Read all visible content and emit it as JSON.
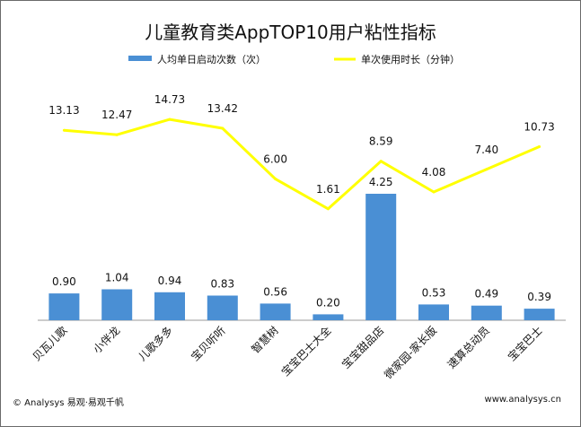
{
  "chart_data": {
    "type": "bar+line",
    "title": "儿童教育类AppTOP10用户粘性指标",
    "categories": [
      "贝瓦儿歌",
      "小伴龙",
      "儿歌多多",
      "宝贝听听",
      "智慧树",
      "宝宝巴士大全",
      "宝宝甜品店",
      "微家园-家长版",
      "速算总动员",
      "宝宝巴士"
    ],
    "series": [
      {
        "name": "人均单日启动次数（次）",
        "type": "bar",
        "color": "#4a8fd4",
        "values": [
          0.9,
          1.04,
          0.94,
          0.83,
          0.56,
          0.2,
          4.25,
          0.53,
          0.49,
          0.39
        ],
        "labels": [
          "0.90",
          "1.04",
          "0.94",
          "0.83",
          "0.56",
          "0.20",
          "4.25",
          "0.53",
          "0.49",
          "0.39"
        ]
      },
      {
        "name": "单次使用时长（分钟）",
        "type": "line",
        "color": "#ffff00",
        "values": [
          13.13,
          12.47,
          14.73,
          13.42,
          6.0,
          1.61,
          8.59,
          4.08,
          7.4,
          10.73
        ],
        "labels": [
          "13.13",
          "12.47",
          "14.73",
          "13.42",
          "6.00",
          "1.61",
          "8.59",
          "4.08",
          "7.40",
          "10.73"
        ]
      }
    ],
    "legend_position": "top",
    "grid": false
  },
  "footer": {
    "left": "© Analysys 易观·易观千帆",
    "right": "www.analysys.cn"
  }
}
